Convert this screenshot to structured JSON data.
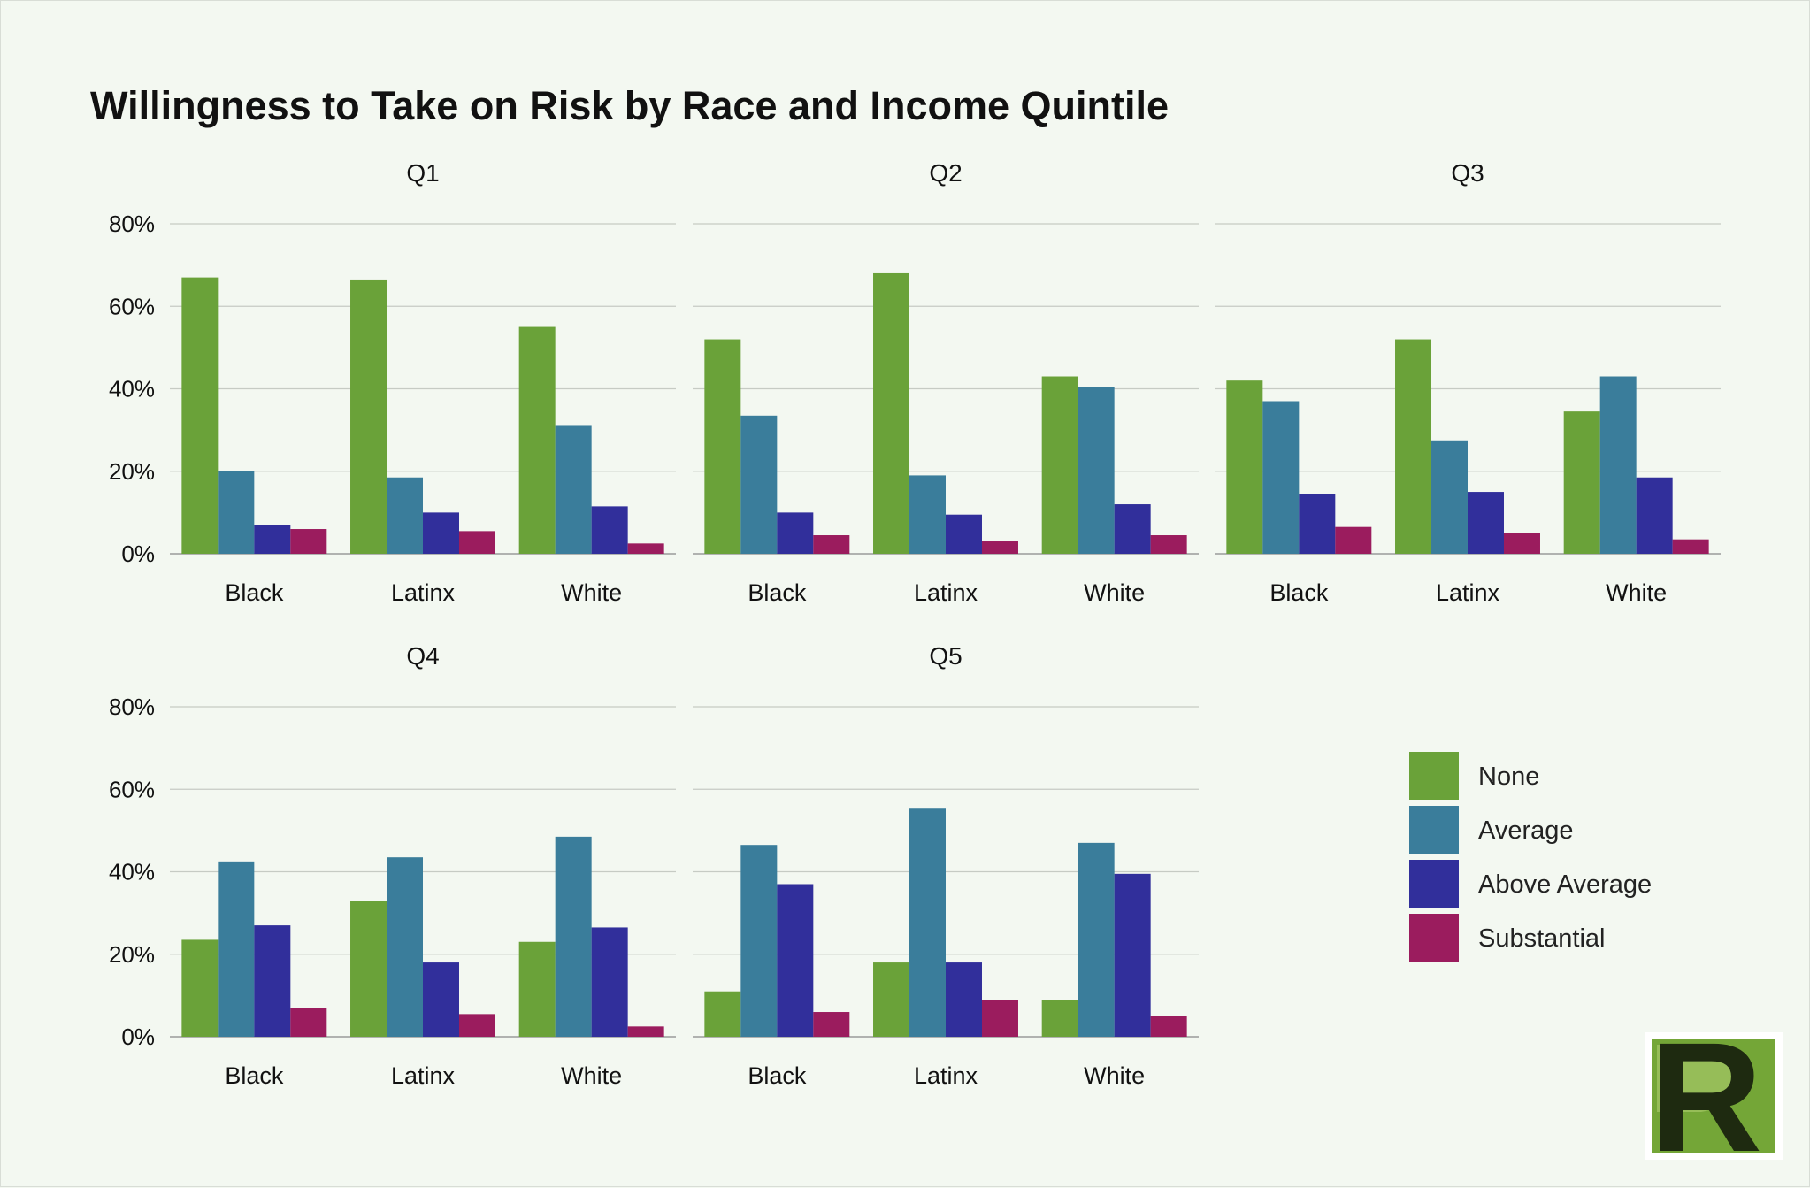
{
  "chart_data": {
    "type": "bar",
    "title": "Willingness to Take on Risk by Race and Income Quintile",
    "xlabel": "",
    "ylabel": "",
    "ylim": [
      0,
      80
    ],
    "y_ticks": [
      0,
      20,
      40,
      60,
      80
    ],
    "y_tick_labels": [
      "0%",
      "20%",
      "40%",
      "60%",
      "80%"
    ],
    "grid": true,
    "legend_position": "right",
    "categories": [
      "Black",
      "Latinx",
      "White"
    ],
    "series_names": [
      "None",
      "Average",
      "Above Average",
      "Substantial"
    ],
    "series_colors": [
      "#6aa239",
      "#3a7d9b",
      "#312f9b",
      "#9b1c5e"
    ],
    "panels": [
      {
        "title": "Q1",
        "series": [
          {
            "name": "None",
            "values": [
              67,
              66.5,
              55
            ]
          },
          {
            "name": "Average",
            "values": [
              20,
              18.5,
              31
            ]
          },
          {
            "name": "Above Average",
            "values": [
              7,
              10,
              11.5
            ]
          },
          {
            "name": "Substantial",
            "values": [
              6,
              5.5,
              2.5
            ]
          }
        ]
      },
      {
        "title": "Q2",
        "series": [
          {
            "name": "None",
            "values": [
              52,
              68,
              43
            ]
          },
          {
            "name": "Average",
            "values": [
              33.5,
              19,
              40.5
            ]
          },
          {
            "name": "Above Average",
            "values": [
              10,
              9.5,
              12
            ]
          },
          {
            "name": "Substantial",
            "values": [
              4.5,
              3,
              4.5
            ]
          }
        ]
      },
      {
        "title": "Q3",
        "series": [
          {
            "name": "None",
            "values": [
              42,
              52,
              34.5
            ]
          },
          {
            "name": "Average",
            "values": [
              37,
              27.5,
              43
            ]
          },
          {
            "name": "Above Average",
            "values": [
              14.5,
              15,
              18.5
            ]
          },
          {
            "name": "Substantial",
            "values": [
              6.5,
              5,
              3.5
            ]
          }
        ]
      },
      {
        "title": "Q4",
        "series": [
          {
            "name": "None",
            "values": [
              23.5,
              33,
              23
            ]
          },
          {
            "name": "Average",
            "values": [
              42.5,
              43.5,
              48.5
            ]
          },
          {
            "name": "Above Average",
            "values": [
              27,
              18,
              26.5
            ]
          },
          {
            "name": "Substantial",
            "values": [
              7,
              5.5,
              2.5
            ]
          }
        ]
      },
      {
        "title": "Q5",
        "series": [
          {
            "name": "None",
            "values": [
              11,
              18,
              9
            ]
          },
          {
            "name": "Average",
            "values": [
              46.5,
              55.5,
              47
            ]
          },
          {
            "name": "Above Average",
            "values": [
              37,
              18,
              39.5
            ]
          },
          {
            "name": "Substantial",
            "values": [
              6,
              9,
              5
            ]
          }
        ]
      }
    ]
  },
  "logo": {
    "letter": "R",
    "color_bg": "#74a637",
    "color_light": "#9cc15e",
    "color_dark": "#1e2a10",
    "border_color": "#ffffff"
  }
}
